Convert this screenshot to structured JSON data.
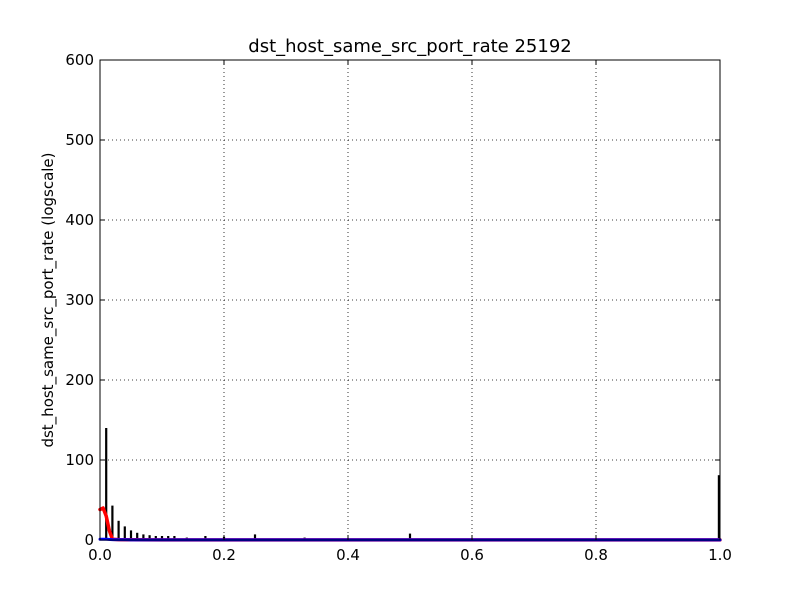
{
  "chart_data": {
    "type": "bar",
    "title": "dst_host_same_src_port_rate 25192",
    "xlabel": "",
    "ylabel": "dst_host_same_src_port_rate (logscale)",
    "xlim": [
      0,
      1
    ],
    "ylim": [
      0,
      600
    ],
    "xticks": [
      "0.0",
      "0.2",
      "0.4",
      "0.6",
      "0.8",
      "1.0"
    ],
    "yticks": [
      "0",
      "100",
      "200",
      "300",
      "400",
      "500",
      "600"
    ],
    "grid": true,
    "colors": {
      "bars": "#000000",
      "red_line": "#ff0000",
      "blue_line": "#0000ff"
    },
    "bars": {
      "x": [
        0.01,
        0.02,
        0.03,
        0.04,
        0.05,
        0.06,
        0.07,
        0.08,
        0.09,
        0.1,
        0.11,
        0.12,
        0.14,
        0.17,
        0.2,
        0.25,
        0.33,
        0.5,
        1.0
      ],
      "values": [
        140,
        43,
        24,
        17,
        12,
        9,
        7,
        6,
        5,
        5,
        5,
        5,
        3,
        5,
        4,
        7,
        3,
        8,
        81
      ]
    },
    "series": [
      {
        "type": "line",
        "color": "#ff0000",
        "x": [
          0.0,
          0.005,
          0.01,
          0.015,
          0.02,
          0.03,
          0.05,
          0.1,
          0.2,
          0.5,
          1.0
        ],
        "values": [
          38,
          40,
          30,
          12,
          1,
          0.5,
          0.3,
          0.2,
          0.1,
          0.1,
          0.1
        ]
      },
      {
        "type": "line",
        "color": "#0000ff",
        "x": [
          0.0,
          0.01,
          0.02,
          0.05,
          0.5,
          1.0
        ],
        "values": [
          1,
          1,
          0.5,
          0.2,
          0.1,
          0.1
        ]
      }
    ]
  }
}
